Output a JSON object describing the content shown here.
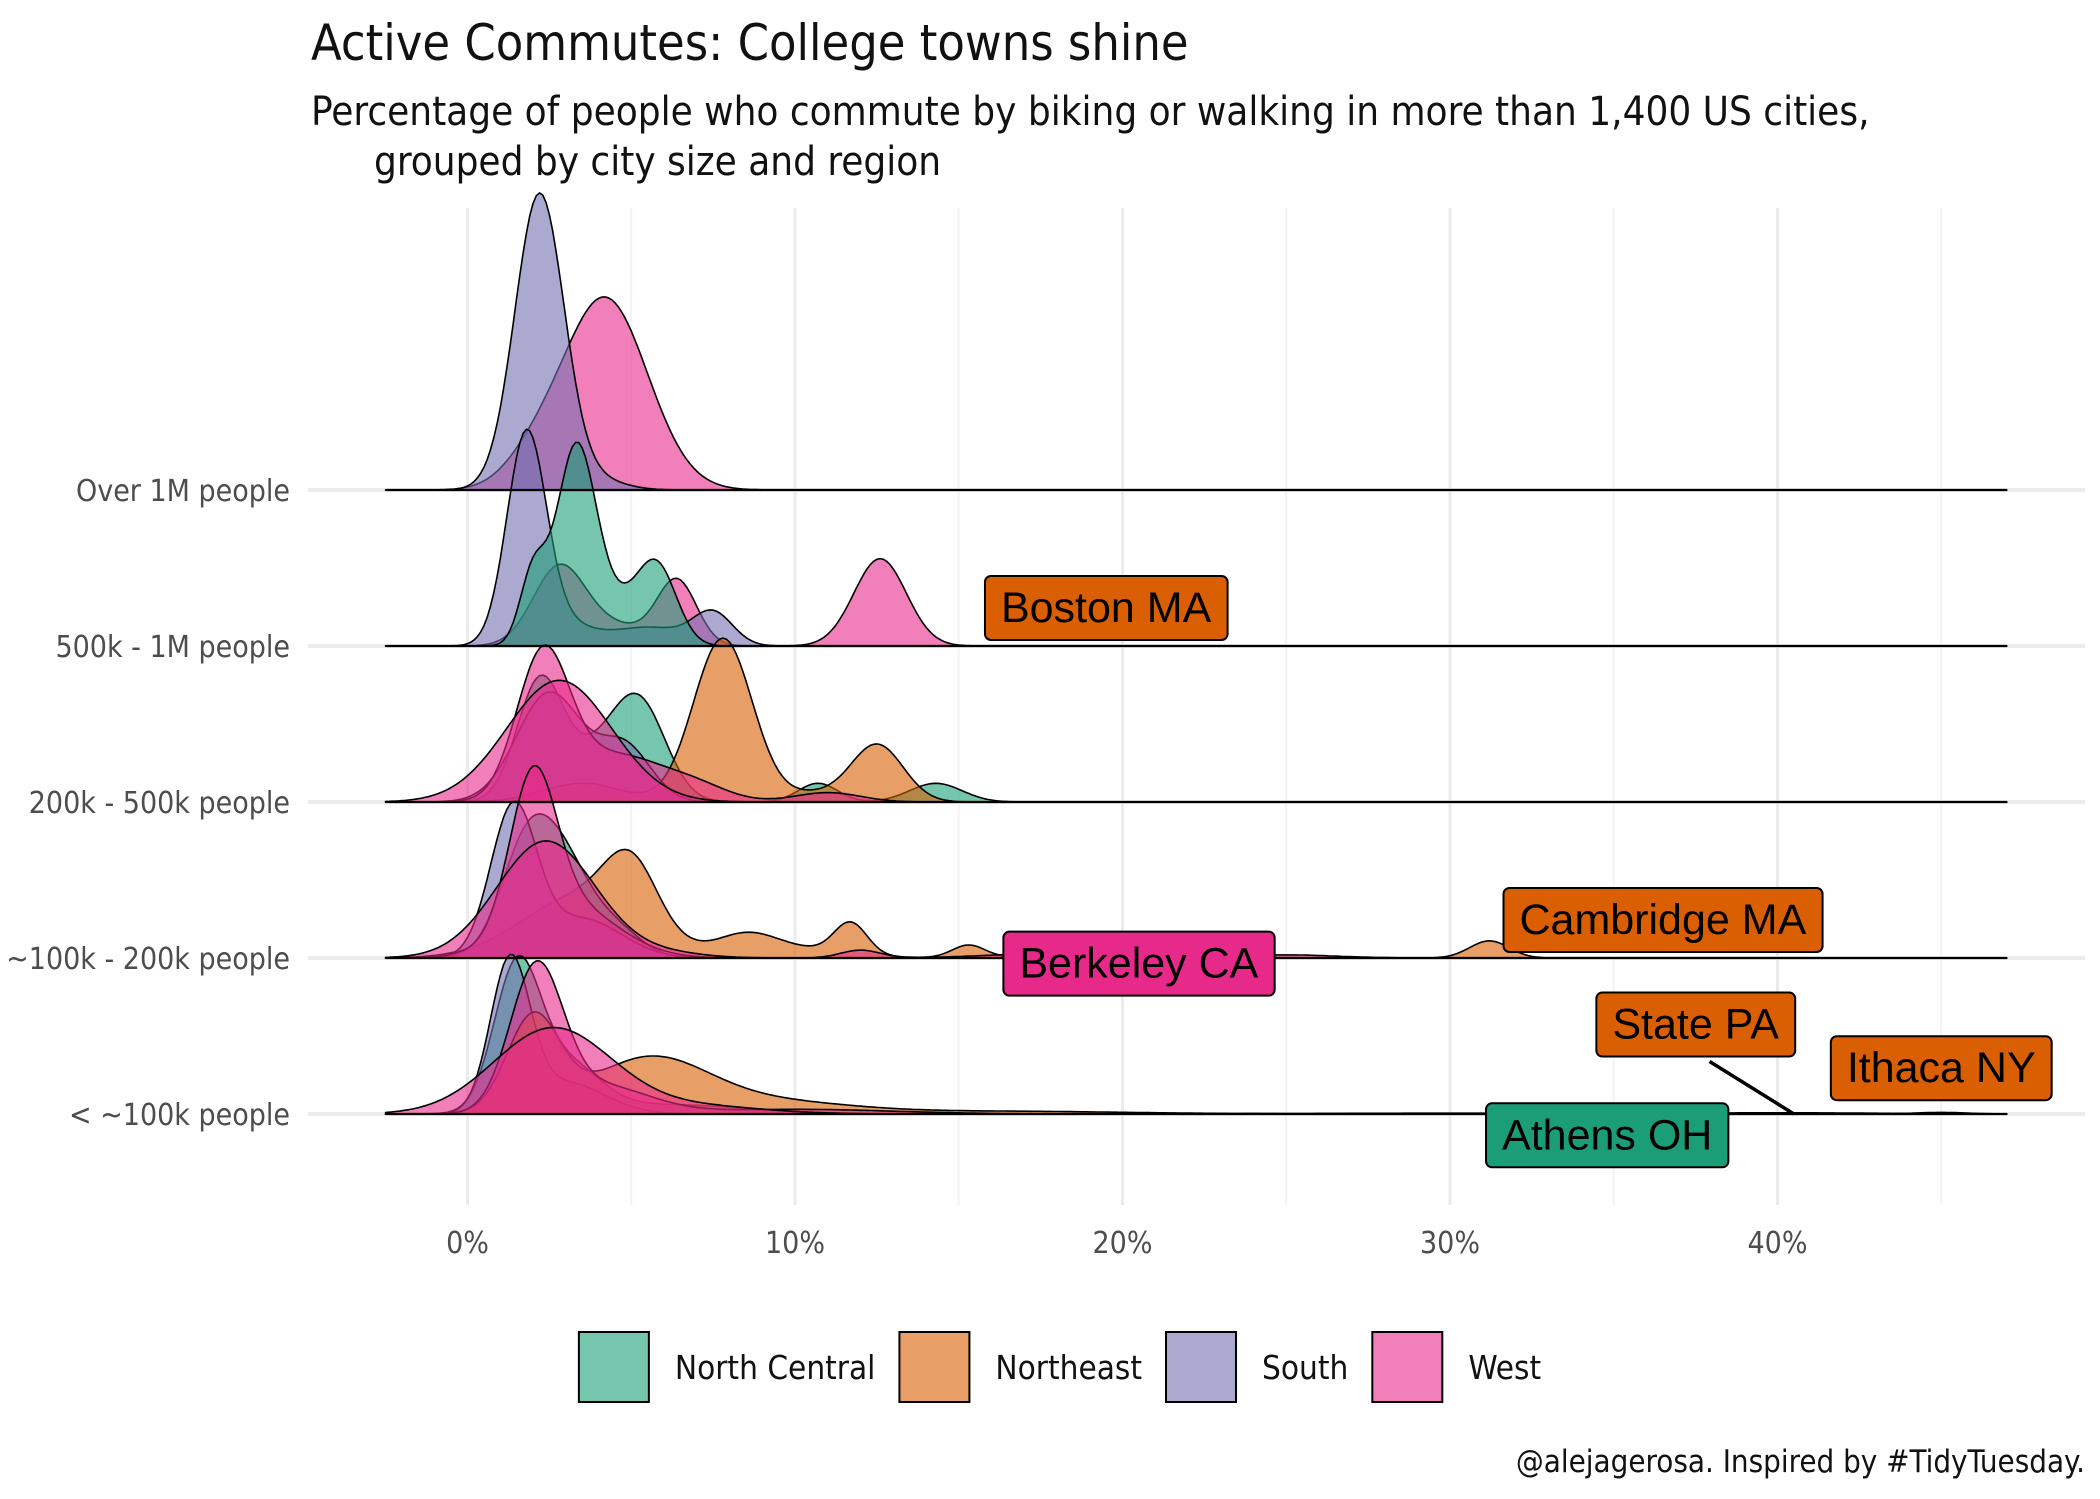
{
  "chart_data": {
    "type": "ridgeline",
    "title": "Active Commutes: College towns shine",
    "subtitle": [
      "Percentage of people who commute by biking or walking in more than 1,400 US cities,",
      "grouped by city size and region"
    ],
    "caption": "@alejagerosa. Inspired by #TidyTuesday.",
    "xlabel": "",
    "ylabel": "",
    "x_unit": "percent",
    "xlim": [
      -2.5,
      47
    ],
    "x_ticks": [
      0,
      10,
      20,
      30,
      40
    ],
    "x_tick_labels": [
      "0%",
      "10%",
      "20%",
      "30%",
      "40%"
    ],
    "categories": [
      "Over 1M people",
      "500k - 1M people",
      "200k - 500k people",
      "~100k - 200k people",
      "< ~100k people"
    ],
    "grid": true,
    "legend_position": "bottom",
    "regions": [
      {
        "name": "North Central",
        "color": "#1b9e77"
      },
      {
        "name": "Northeast",
        "color": "#d95f02"
      },
      {
        "name": "South",
        "color": "#7570b3"
      },
      {
        "name": "West",
        "color": "#e7298a"
      }
    ],
    "ridges": [
      {
        "category": "Over 1M people",
        "region": "West",
        "components": [
          {
            "m": 4.2,
            "s": 1.3,
            "h": 1.23
          },
          {
            "m": 2.0,
            "s": 0.9,
            "h": 0.15
          }
        ]
      },
      {
        "category": "Over 1M people",
        "region": "South",
        "components": [
          {
            "m": 2.2,
            "s": 0.75,
            "h": 1.9
          },
          {
            "m": 4.0,
            "s": 0.8,
            "h": 0.06
          }
        ]
      },
      {
        "category": "500k - 1M people",
        "region": "West",
        "components": [
          {
            "m": 2.8,
            "s": 0.8,
            "h": 0.5
          },
          {
            "m": 6.4,
            "s": 0.6,
            "h": 0.41
          },
          {
            "m": 12.6,
            "s": 0.8,
            "h": 0.56
          },
          {
            "m": 4.6,
            "s": 1.0,
            "h": 0.12
          }
        ]
      },
      {
        "category": "500k - 1M people",
        "region": "South",
        "components": [
          {
            "m": 1.8,
            "s": 0.6,
            "h": 1.35
          },
          {
            "m": 3.0,
            "s": 0.8,
            "h": 0.12
          },
          {
            "m": 5.5,
            "s": 1.2,
            "h": 0.12
          },
          {
            "m": 7.5,
            "s": 0.6,
            "h": 0.2
          }
        ]
      },
      {
        "category": "500k - 1M people",
        "region": "North Central",
        "components": [
          {
            "m": 2.0,
            "s": 0.4,
            "h": 0.45
          },
          {
            "m": 3.3,
            "s": 0.6,
            "h": 1.2
          },
          {
            "m": 5.8,
            "s": 0.6,
            "h": 0.46
          },
          {
            "m": 4.5,
            "s": 0.9,
            "h": 0.25
          }
        ]
      },
      {
        "category": "200k - 500k people",
        "region": "North Central",
        "components": [
          {
            "m": 2.2,
            "s": 0.7,
            "h": 0.75
          },
          {
            "m": 5.3,
            "s": 0.8,
            "h": 0.55
          },
          {
            "m": 10.7,
            "s": 0.6,
            "h": 0.12
          },
          {
            "m": 14.3,
            "s": 0.8,
            "h": 0.12
          },
          {
            "m": 4.0,
            "s": 1.0,
            "h": 0.3
          }
        ]
      },
      {
        "category": "200k - 500k people",
        "region": "Northeast",
        "components": [
          {
            "m": 7.8,
            "s": 0.9,
            "h": 1.05
          },
          {
            "m": 12.5,
            "s": 0.8,
            "h": 0.37
          },
          {
            "m": 3.5,
            "s": 1.2,
            "h": 0.12
          },
          {
            "m": 10.5,
            "s": 0.8,
            "h": 0.05
          }
        ]
      },
      {
        "category": "200k - 500k people",
        "region": "South",
        "components": [
          {
            "m": 2.5,
            "s": 1.0,
            "h": 0.7
          },
          {
            "m": 4.8,
            "s": 0.8,
            "h": 0.35
          }
        ]
      },
      {
        "category": "200k - 500k people",
        "region": "West",
        "components": [
          {
            "m": 2.3,
            "s": 0.8,
            "h": 0.9
          },
          {
            "m": 4.5,
            "s": 1.5,
            "h": 0.3
          },
          {
            "m": 7.0,
            "s": 1.0,
            "h": 0.08
          },
          {
            "m": 11.0,
            "s": 1.0,
            "h": 0.06
          }
        ]
      },
      {
        "category": "200k - 500k people",
        "region": "West",
        "components": [
          {
            "m": 2.8,
            "s": 1.6,
            "h": 0.78
          }
        ]
      },
      {
        "category": "~100k - 200k people",
        "region": "Northeast",
        "components": [
          {
            "m": 3.5,
            "s": 1.8,
            "h": 0.4
          },
          {
            "m": 5.0,
            "s": 0.8,
            "h": 0.4
          },
          {
            "m": 8.5,
            "s": 0.9,
            "h": 0.12
          },
          {
            "m": 11.7,
            "s": 0.5,
            "h": 0.2
          },
          {
            "m": 15.3,
            "s": 0.5,
            "h": 0.08
          },
          {
            "m": 31.2,
            "s": 0.6,
            "h": 0.11
          },
          {
            "m": 10.0,
            "s": 1.5,
            "h": 0.06
          },
          {
            "m": 20.0,
            "s": 3.0,
            "h": 0.012
          }
        ]
      },
      {
        "category": "~100k - 200k people",
        "region": "North Central",
        "components": [
          {
            "m": 1.8,
            "s": 0.8,
            "h": 0.7
          },
          {
            "m": 3.0,
            "s": 0.8,
            "h": 0.5
          },
          {
            "m": 4.5,
            "s": 0.8,
            "h": 0.18
          }
        ]
      },
      {
        "category": "~100k - 200k people",
        "region": "South",
        "components": [
          {
            "m": 1.4,
            "s": 0.7,
            "h": 0.95
          },
          {
            "m": 3.5,
            "s": 1.2,
            "h": 0.25
          }
        ]
      },
      {
        "category": "~100k - 200k people",
        "region": "West",
        "components": [
          {
            "m": 2.0,
            "s": 0.7,
            "h": 0.95
          },
          {
            "m": 3.0,
            "s": 1.5,
            "h": 0.35
          },
          {
            "m": 12.0,
            "s": 0.6,
            "h": 0.05
          },
          {
            "m": 18.0,
            "s": 2.0,
            "h": 0.03
          },
          {
            "m": 25.0,
            "s": 1.5,
            "h": 0.02
          }
        ]
      },
      {
        "category": "~100k - 200k people",
        "region": "West",
        "components": [
          {
            "m": 2.4,
            "s": 1.5,
            "h": 0.75
          },
          {
            "m": 6.0,
            "s": 1.2,
            "h": 0.03
          }
        ]
      },
      {
        "category": "< ~100k people",
        "region": "North Central",
        "components": [
          {
            "m": 1.5,
            "s": 0.7,
            "h": 0.9
          },
          {
            "m": 3.0,
            "s": 1.0,
            "h": 0.3
          },
          {
            "m": 6.0,
            "s": 2.5,
            "h": 0.06
          },
          {
            "m": 30.0,
            "s": 3.0,
            "h": 0.004
          }
        ]
      },
      {
        "category": "< ~100k people",
        "region": "South",
        "components": [
          {
            "m": 1.3,
            "s": 0.6,
            "h": 0.95
          },
          {
            "m": 3.0,
            "s": 1.2,
            "h": 0.2
          }
        ]
      },
      {
        "category": "< ~100k people",
        "region": "Northeast",
        "components": [
          {
            "m": 2.0,
            "s": 0.8,
            "h": 0.6
          },
          {
            "m": 5.5,
            "s": 1.8,
            "h": 0.34
          },
          {
            "m": 9.0,
            "s": 2.5,
            "h": 0.08
          },
          {
            "m": 16.0,
            "s": 4.0,
            "h": 0.018
          },
          {
            "m": 40.0,
            "s": 3.0,
            "h": 0.008
          }
        ]
      },
      {
        "category": "< ~100k people",
        "region": "West",
        "components": [
          {
            "m": 2.1,
            "s": 0.8,
            "h": 0.9
          },
          {
            "m": 4.0,
            "s": 1.5,
            "h": 0.18
          },
          {
            "m": 10.0,
            "s": 3.0,
            "h": 0.03
          }
        ]
      },
      {
        "category": "< ~100k people",
        "region": "West",
        "components": [
          {
            "m": 2.6,
            "s": 1.8,
            "h": 0.55
          },
          {
            "m": 7.0,
            "s": 2.0,
            "h": 0.05
          },
          {
            "m": 30.0,
            "s": 5.0,
            "h": 0.005
          },
          {
            "m": 45.0,
            "s": 0.8,
            "h": 0.01
          }
        ]
      }
    ],
    "annotations": [
      {
        "text": "Boston MA",
        "region": "Northeast",
        "category": "500k - 1M people",
        "x": 19.5,
        "level": 0.25
      },
      {
        "text": "Cambridge MA",
        "region": "Northeast",
        "category": "~100k - 200k people",
        "x": 36.5,
        "level": 0.25
      },
      {
        "text": "Berkeley CA",
        "region": "West",
        "category": "~100k - 200k people",
        "x": 20.5,
        "level": -0.03
      },
      {
        "text": "State PA",
        "region": "Northeast",
        "category": "< ~100k people",
        "x": 37.5,
        "level": 0.58,
        "leader_to_x": 40.5
      },
      {
        "text": "Ithaca NY",
        "region": "Northeast",
        "category": "< ~100k people",
        "x": 45.0,
        "level": 0.3
      },
      {
        "text": "Athens OH",
        "region": "North Central",
        "category": "< ~100k people",
        "x": 34.8,
        "level": -0.13
      }
    ]
  }
}
